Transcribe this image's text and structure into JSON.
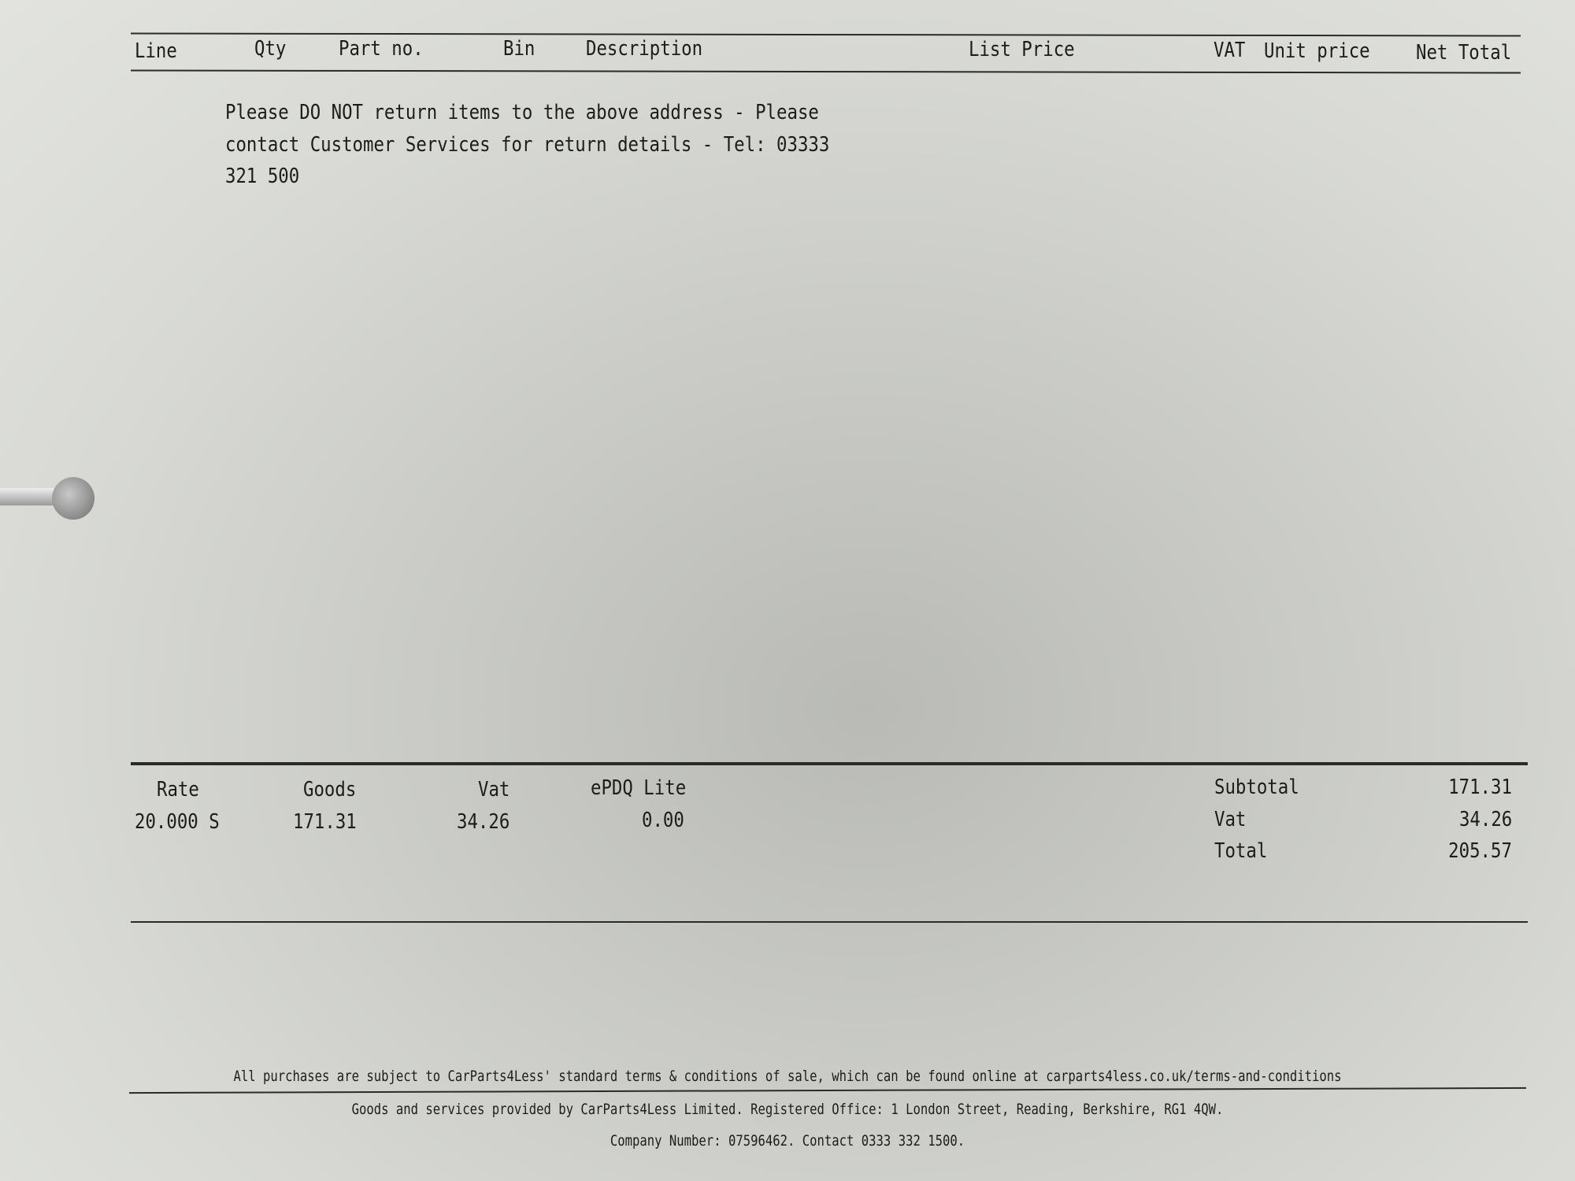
{
  "table_header": {
    "columns": [
      "Line",
      "Qty",
      "Part no.",
      "Bin",
      "Description",
      "List Price",
      "VAT",
      "Unit price",
      "Net Total"
    ]
  },
  "notice": {
    "lines": [
      "Please DO NOT return items to the above address - Please",
      "contact Customer Services for return details - Tel: 03333",
      "321 500"
    ]
  },
  "vat_summary": {
    "headers": [
      "Rate",
      "Goods",
      "Vat",
      "ePDQ Lite"
    ],
    "values": [
      "20.000 S",
      "171.31",
      "34.26",
      "0.00"
    ]
  },
  "totals": [
    {
      "label": "Subtotal",
      "value": "171.31"
    },
    {
      "label": "Vat",
      "value": "34.26"
    },
    {
      "label": "Total",
      "value": "205.57"
    }
  ],
  "footer": {
    "terms": "All purchases are subject to CarParts4Less' standard terms & conditions of sale, which can be found online at carparts4less.co.uk/terms-and-conditions",
    "provider": "Goods and services provided by CarParts4Less Limited. Registered Office: 1 London Street, Reading, Berkshire, RG1 4QW.",
    "company": "Company Number: 07596462. Contact 0333 332 1500."
  }
}
